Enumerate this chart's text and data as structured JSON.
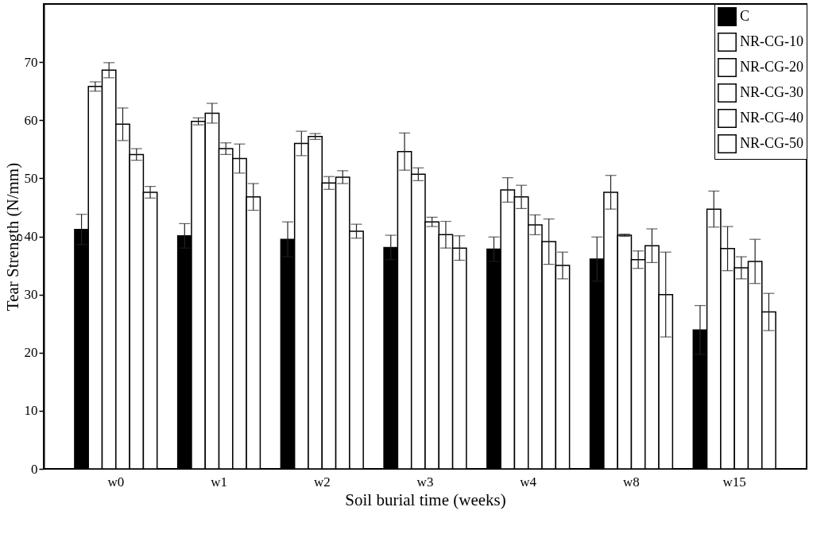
{
  "chart_data": {
    "type": "bar",
    "xlabel": "Soil burial time (weeks)",
    "ylabel": "Tear Strength (N/mm)",
    "categories": [
      "w0",
      "w1",
      "w2",
      "w3",
      "w4",
      "w8",
      "w15"
    ],
    "ylim": [
      0,
      80
    ],
    "yticks": [
      0,
      10,
      20,
      30,
      40,
      50,
      60,
      70
    ],
    "legend": "top right",
    "grid": false,
    "series": [
      {
        "name": "C",
        "color": "#000000",
        "values": [
          41.2,
          40.1,
          39.5,
          38.1,
          37.8,
          36.1,
          23.9
        ],
        "errors": [
          2.6,
          2.1,
          3.0,
          2.1,
          2.1,
          3.8,
          4.2
        ]
      },
      {
        "name": "NR-CG-10",
        "color": "#ffffff",
        "values": [
          65.8,
          59.8,
          56.0,
          54.6,
          48.0,
          47.6,
          44.7
        ],
        "errors": [
          0.8,
          0.6,
          2.1,
          3.2,
          2.1,
          2.9,
          3.1
        ]
      },
      {
        "name": "NR-CG-20",
        "color": "#ffffff",
        "values": [
          68.6,
          61.2,
          57.2,
          50.7,
          46.8,
          40.2,
          37.9
        ],
        "errors": [
          1.3,
          1.7,
          0.5,
          1.1,
          2.0,
          0.2,
          3.8
        ]
      },
      {
        "name": "NR-CG-30",
        "color": "#ffffff",
        "values": [
          59.3,
          55.1,
          49.2,
          42.5,
          42.0,
          36.0,
          34.6
        ],
        "errors": [
          2.8,
          1.0,
          1.1,
          0.8,
          1.7,
          1.5,
          1.9
        ]
      },
      {
        "name": "NR-CG-40",
        "color": "#ffffff",
        "values": [
          54.1,
          53.4,
          50.2,
          40.3,
          39.1,
          38.4,
          35.7
        ],
        "errors": [
          1.0,
          2.5,
          1.1,
          2.3,
          3.9,
          2.9,
          3.8
        ]
      },
      {
        "name": "NR-CG-50",
        "color": "#ffffff",
        "values": [
          47.6,
          46.8,
          40.9,
          38.0,
          35.0,
          30.0,
          27.0
        ],
        "errors": [
          1.0,
          2.3,
          1.2,
          2.1,
          2.3,
          7.3,
          3.2
        ]
      }
    ]
  }
}
